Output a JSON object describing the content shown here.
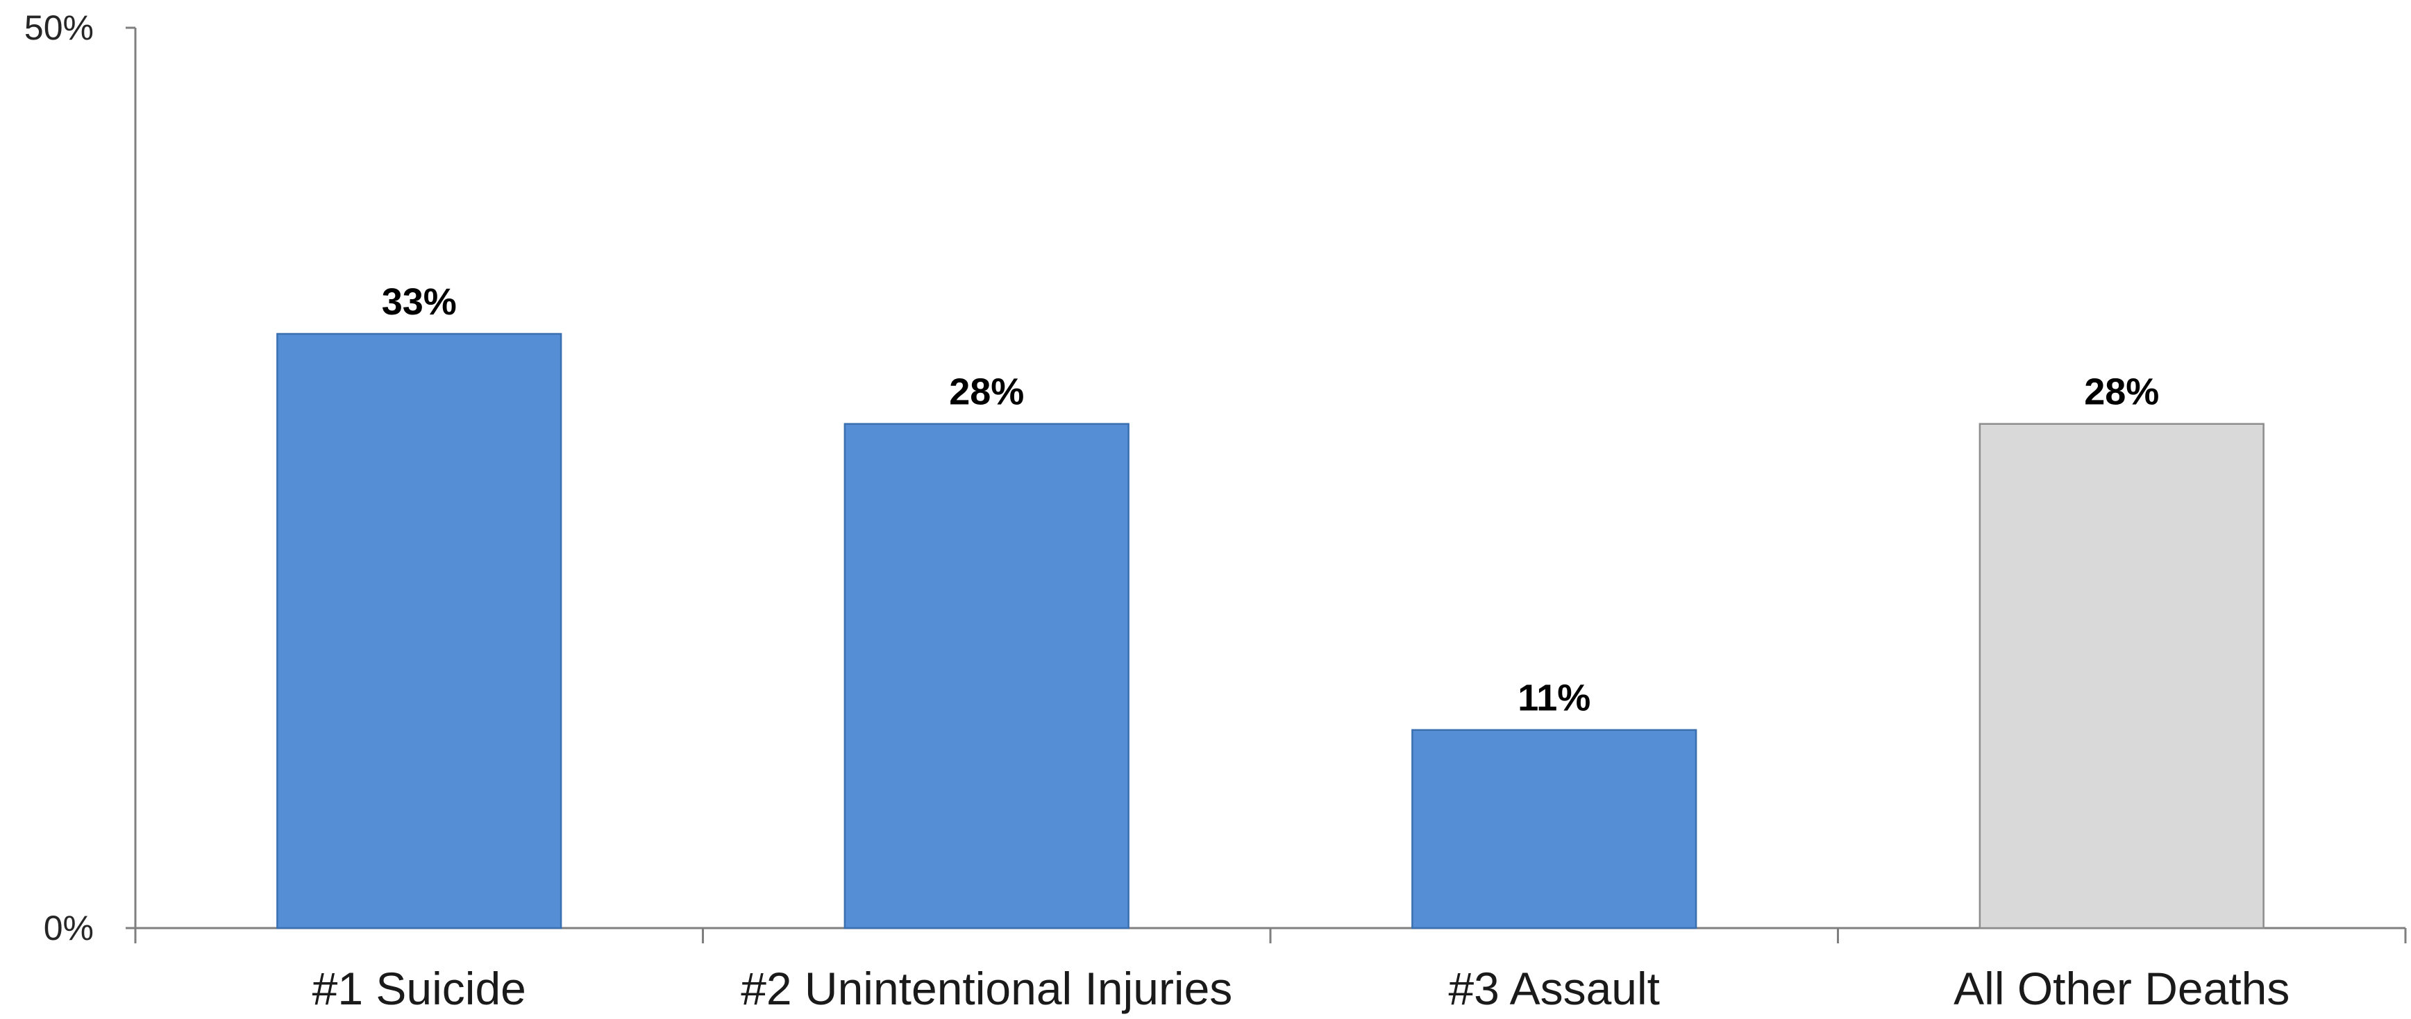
{
  "chart_data": {
    "type": "bar",
    "categories": [
      "#1 Suicide",
      "#2 Unintentional Injuries",
      "#3 Assault",
      "All Other Deaths"
    ],
    "values": [
      33,
      28,
      11,
      28
    ],
    "data_labels": [
      "33%",
      "28%",
      "11%",
      "28%"
    ],
    "bar_colors": [
      "#558ed5",
      "#558ed5",
      "#558ed5",
      "#d9d9d9"
    ],
    "bar_edge_colors": [
      "#3a6fb0",
      "#3a6fb0",
      "#3a6fb0",
      "#8c8c8c"
    ],
    "ylim": [
      0,
      50
    ],
    "y_ticks": [
      {
        "value": 0,
        "label": "0%"
      },
      {
        "value": 50,
        "label": "50%"
      }
    ],
    "grid": false,
    "legend": "none"
  }
}
